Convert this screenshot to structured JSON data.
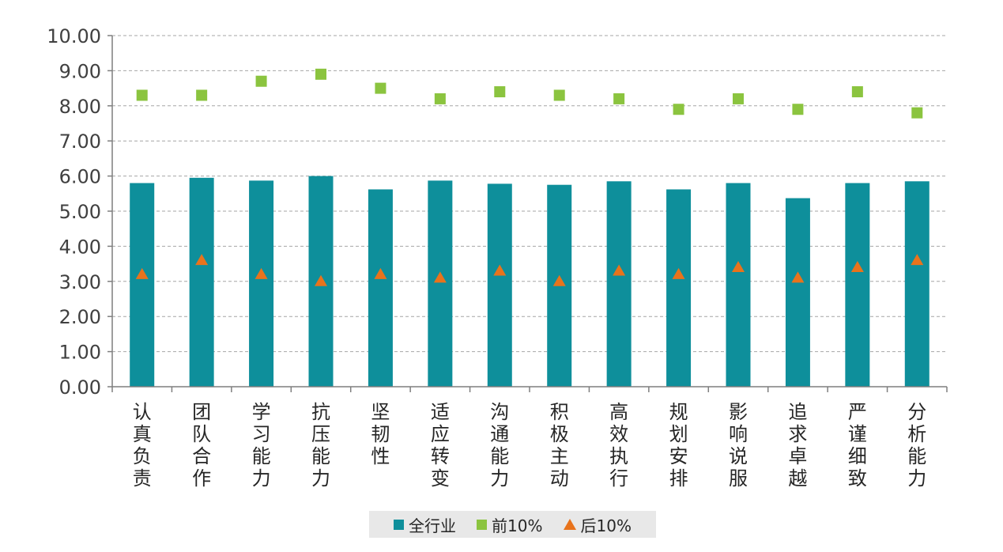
{
  "chart_data": {
    "type": "bar",
    "categories": [
      "认真负责",
      "团队合作",
      "学习能力",
      "抗压能力",
      "坚韧性",
      "适应转变",
      "沟通能力",
      "积极主动",
      "高效执行",
      "规划安排",
      "影响说服",
      "追求卓越",
      "严谨细致",
      "分析能力"
    ],
    "series": [
      {
        "name": "全行业",
        "kind": "bar",
        "marker": "bar",
        "color": "#0e8f9b",
        "values": [
          5.8,
          5.95,
          5.87,
          6.0,
          5.62,
          5.87,
          5.78,
          5.75,
          5.85,
          5.62,
          5.8,
          5.37,
          5.8,
          5.85
        ]
      },
      {
        "name": "前10%",
        "kind": "scatter",
        "marker": "square",
        "color": "#8bc43f",
        "values": [
          8.3,
          8.3,
          8.7,
          8.9,
          8.5,
          8.2,
          8.4,
          8.3,
          8.2,
          7.9,
          8.2,
          7.9,
          8.4,
          7.8
        ]
      },
      {
        "name": "后10%",
        "kind": "scatter",
        "marker": "triangle",
        "color": "#e8731c",
        "values": [
          3.2,
          3.6,
          3.2,
          3.0,
          3.2,
          3.1,
          3.3,
          3.0,
          3.3,
          3.2,
          3.4,
          3.1,
          3.4,
          3.6
        ]
      }
    ],
    "yticks": [
      "0.00",
      "1.00",
      "2.00",
      "3.00",
      "4.00",
      "5.00",
      "6.00",
      "7.00",
      "8.00",
      "9.00",
      "10.00"
    ],
    "ylim": [
      0,
      10
    ],
    "title": "",
    "xlabel": "",
    "ylabel": "",
    "grid": true,
    "legend_position": "bottom"
  }
}
